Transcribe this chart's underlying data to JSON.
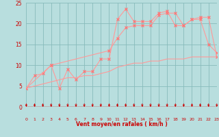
{
  "bg_color": "#b8dede",
  "grid_color": "#88bbbb",
  "line_color": "#ff9999",
  "marker_color": "#ff7777",
  "axis_line_color": "#cc0000",
  "tick_label_color": "#cc0000",
  "xlabel": "Vent moyen/en rafales ( km/h )",
  "xlabel_color": "#cc0000",
  "xlim": [
    0,
    23
  ],
  "ylim": [
    0,
    25
  ],
  "yticks": [
    0,
    5,
    10,
    15,
    20,
    25
  ],
  "xticks": [
    0,
    1,
    2,
    3,
    4,
    5,
    6,
    7,
    8,
    9,
    10,
    11,
    12,
    13,
    14,
    15,
    16,
    17,
    18,
    19,
    20,
    21,
    22,
    23
  ],
  "line1_x": [
    0,
    1,
    2,
    3,
    4,
    5,
    6,
    7,
    8,
    9,
    10,
    11,
    12,
    13,
    14,
    15,
    16,
    17,
    18,
    19,
    20,
    21,
    22,
    23
  ],
  "line1_y": [
    4.5,
    7.5,
    8.0,
    10.0,
    4.5,
    9.0,
    6.5,
    8.5,
    8.5,
    11.5,
    11.5,
    21.0,
    23.5,
    20.5,
    20.5,
    20.5,
    22.5,
    23.0,
    19.5,
    19.5,
    21.0,
    21.0,
    15.0,
    13.0
  ],
  "line2_x": [
    0,
    3,
    10,
    11,
    12,
    13,
    14,
    15,
    16,
    17,
    18,
    19,
    20,
    21,
    22,
    23
  ],
  "line2_y": [
    4.5,
    10.0,
    13.5,
    16.5,
    19.0,
    19.5,
    19.5,
    19.5,
    22.0,
    22.5,
    22.5,
    19.5,
    21.0,
    21.5,
    21.5,
    12.0
  ],
  "line3_x": [
    0,
    1,
    2,
    3,
    4,
    5,
    6,
    7,
    8,
    9,
    10,
    11,
    12,
    13,
    14,
    15,
    16,
    17,
    18,
    19,
    20,
    21,
    22,
    23
  ],
  "line3_y": [
    4.5,
    5.0,
    5.5,
    6.0,
    6.5,
    7.0,
    7.0,
    7.5,
    7.5,
    8.0,
    8.5,
    9.5,
    10.0,
    10.5,
    10.5,
    11.0,
    11.0,
    11.5,
    11.5,
    11.5,
    12.0,
    12.0,
    12.0,
    12.0
  ]
}
